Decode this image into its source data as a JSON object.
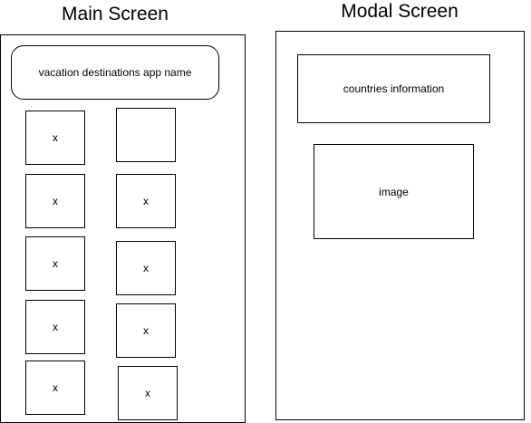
{
  "main_screen": {
    "title": "Main Screen",
    "header_label": "vacation destinations app name",
    "grid": {
      "left": [
        "x",
        "x",
        "x",
        "x",
        "x"
      ],
      "right": [
        "",
        "x",
        "x",
        "x",
        "x"
      ]
    }
  },
  "modal_screen": {
    "title": "Modal Screen",
    "info_label": "countries information",
    "image_label": "image"
  }
}
